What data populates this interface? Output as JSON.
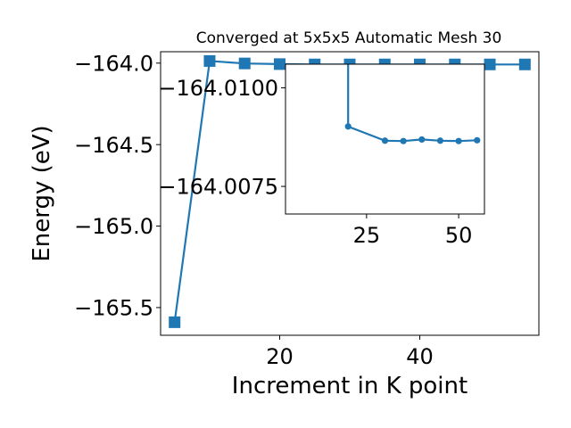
{
  "chart_data": [
    {
      "type": "line",
      "title": "Converged at 5x5x5 Automatic Mesh 30",
      "xlabel": "Increment in K point",
      "ylabel": "Energy (eV)",
      "xlim": [
        3,
        57
      ],
      "ylim": [
        -165.67,
        -163.93
      ],
      "xticks": [
        20,
        40
      ],
      "xtick_labels": [
        "20",
        "40"
      ],
      "yticks": [
        -165.5,
        -165.0,
        -164.5,
        -164.0
      ],
      "ytick_labels": [
        "−165.5",
        "−165.0",
        "−164.5",
        "−164.0"
      ],
      "grid": false,
      "color": "#1f77b4",
      "marker": "square",
      "x": [
        5,
        10,
        15,
        20,
        25,
        30,
        35,
        40,
        45,
        50,
        55
      ],
      "y": [
        -165.59,
        -163.987,
        -164.002,
        -164.006,
        -164.008,
        -164.008,
        -164.008,
        -164.008,
        -164.008,
        -164.008,
        -164.008
      ]
    },
    {
      "type": "line",
      "role": "inset",
      "xlim": [
        3,
        57
      ],
      "ylim": [
        -164.0068,
        -164.0106
      ],
      "xticks": [
        25,
        50
      ],
      "xtick_labels": [
        "25",
        "50"
      ],
      "yticks": [
        -164.01,
        -164.0075
      ],
      "ytick_labels": [
        "−164.0100",
        "−164.0075"
      ],
      "grid": false,
      "color": "#1f77b4",
      "marker": "circle",
      "x": [
        20,
        20,
        30,
        35,
        40,
        45,
        50,
        55
      ],
      "y": [
        -164.0106,
        -164.00902,
        -164.00866,
        -164.00865,
        -164.00869,
        -164.00866,
        -164.00865,
        -164.00867
      ]
    }
  ]
}
